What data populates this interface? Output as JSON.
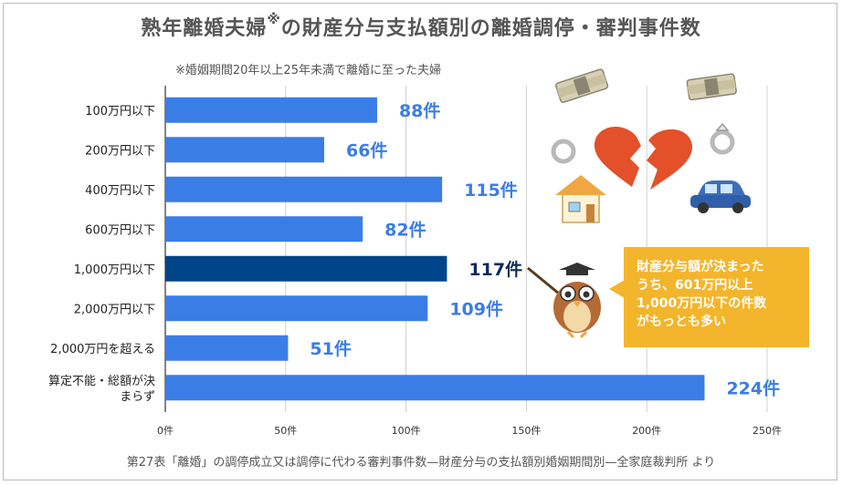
{
  "header": {
    "title": "熟年離婚夫婦",
    "title_mark": "※",
    "title_suffix": "の財産分与支払額別の離婚調停・審判事件数",
    "note": "※婚姻期間20年以上25年未満で離婚に至った夫婦"
  },
  "footer": {
    "source": "第27表「離婚」の調停成立又は調停に代わる審判事件数—財産分与の支払額別婚姻期間別—全家庭裁判所 より"
  },
  "callout": {
    "lines": [
      "財産分与額が決まった",
      "うち、601万円以上",
      "1,000万円以下の件数",
      "がもっとも多い"
    ],
    "bg_color": "#f3b52b"
  },
  "illustrations": {
    "icons": [
      "money-bundle-icon",
      "money-bundle-icon",
      "ring-icon",
      "broken-heart-icon",
      "ring-icon",
      "house-icon",
      "car-icon",
      "owl-teacher-icon"
    ]
  },
  "chart_data": {
    "type": "bar",
    "orientation": "horizontal",
    "categories": [
      "100万円以下",
      "200万円以下",
      "400万円以下",
      "600万円以下",
      "1,000万円以下",
      "2,000万円以下",
      "2,000万円を超える",
      "算定不能・総額が決まらず"
    ],
    "category_lines": [
      [
        "100万円以下"
      ],
      [
        "200万円以下"
      ],
      [
        "400万円以下"
      ],
      [
        "600万円以下"
      ],
      [
        "1,000万円以下"
      ],
      [
        "2,000万円以下"
      ],
      [
        "2,000万円を超える"
      ],
      [
        "算定不能・総額が決",
        "まらず"
      ]
    ],
    "values": [
      88,
      66,
      115,
      82,
      117,
      109,
      51,
      224
    ],
    "value_labels": [
      "88件",
      "66件",
      "115件",
      "82件",
      "117件",
      "109件",
      "51件",
      "224件"
    ],
    "highlight_index": 4,
    "xlim": [
      0,
      250
    ],
    "xticks": [
      0,
      50,
      100,
      150,
      200,
      250
    ],
    "xtick_labels": [
      "0件",
      "50件",
      "100件",
      "150件",
      "200件",
      "250件"
    ],
    "xlabel": "",
    "ylabel": "",
    "grid": true,
    "legend": "none",
    "colors": {
      "bar": "#3b7de6",
      "highlight_bar": "#00458a",
      "label": "#3b7de6",
      "highlight_label": "#0a2d5a",
      "grid": "#d0d0d0"
    }
  }
}
